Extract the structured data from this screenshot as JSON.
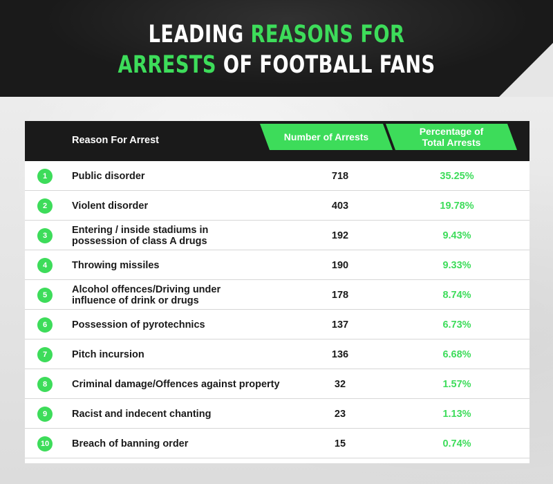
{
  "title": {
    "part1": "LEADING ",
    "part2": "REASONS FOR",
    "part3": "ARRESTS",
    "part4": " OF FOOTBALL FANS"
  },
  "colors": {
    "accent": "#3ddc5a",
    "dark": "#1a1a1a",
    "background": "#e6e6e6"
  },
  "chart_data": {
    "type": "table",
    "columns": [
      "Reason For Arrest",
      "Number of Arrests",
      "Percentage of Total Arrests"
    ],
    "rows": [
      {
        "rank": "1",
        "reason": "Public disorder",
        "arrests": "718",
        "percentage": "35.25%"
      },
      {
        "rank": "2",
        "reason": "Violent disorder",
        "arrests": "403",
        "percentage": "19.78%"
      },
      {
        "rank": "3",
        "reason": "Entering / inside stadiums in possession of class A drugs",
        "arrests": "192",
        "percentage": "9.43%"
      },
      {
        "rank": "4",
        "reason": "Throwing missiles",
        "arrests": "190",
        "percentage": "9.33%"
      },
      {
        "rank": "5",
        "reason": "Alcohol offences/Driving under influence of drink or drugs",
        "arrests": "178",
        "percentage": "8.74%"
      },
      {
        "rank": "6",
        "reason": "Possession of pyrotechnics",
        "arrests": "137",
        "percentage": "6.73%"
      },
      {
        "rank": "7",
        "reason": "Pitch incursion",
        "arrests": "136",
        "percentage": "6.68%"
      },
      {
        "rank": "8",
        "reason": "Criminal damage/Offences against property",
        "arrests": "32",
        "percentage": "1.57%"
      },
      {
        "rank": "9",
        "reason": "Racist and indecent chanting",
        "arrests": "23",
        "percentage": "1.13%"
      },
      {
        "rank": "10",
        "reason": "Breach of banning order",
        "arrests": "15",
        "percentage": "0.74%"
      }
    ]
  }
}
